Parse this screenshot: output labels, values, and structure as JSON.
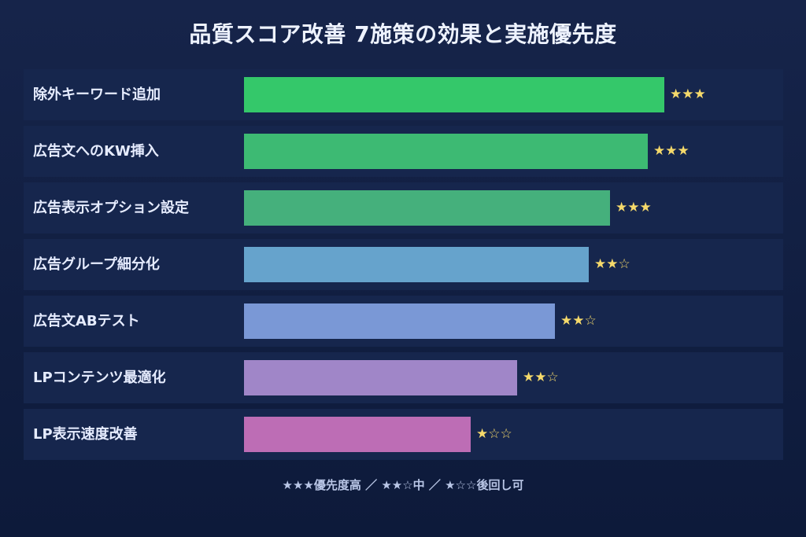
{
  "chart_data": {
    "type": "bar",
    "orientation": "horizontal",
    "title": "品質スコア改善 7施策の効果と実施優先度",
    "xlabel": "",
    "ylabel": "",
    "xlim": [
      0,
      100
    ],
    "grid": false,
    "categories": [
      "除外キーワード追加",
      "広告文へのKW挿入",
      "広告表示オプション設定",
      "広告グループ細分化",
      "広告文ABテスト",
      "LPコンテンツ最適化",
      "LP表示速度改善"
    ],
    "values": [
      100,
      96,
      87,
      82,
      74,
      65,
      54
    ],
    "priority_stars": [
      "★★★",
      "★★★",
      "★★★",
      "★★☆",
      "★★☆",
      "★★☆",
      "★☆☆"
    ],
    "colors": [
      "#34c86a",
      "#3dba73",
      "#45b07c",
      "#66a3cc",
      "#7a98d6",
      "#a086c8",
      "#bd6db5"
    ],
    "legend_text": "★★★優先度高 ／ ★★☆中 ／ ★☆☆後回し可"
  }
}
